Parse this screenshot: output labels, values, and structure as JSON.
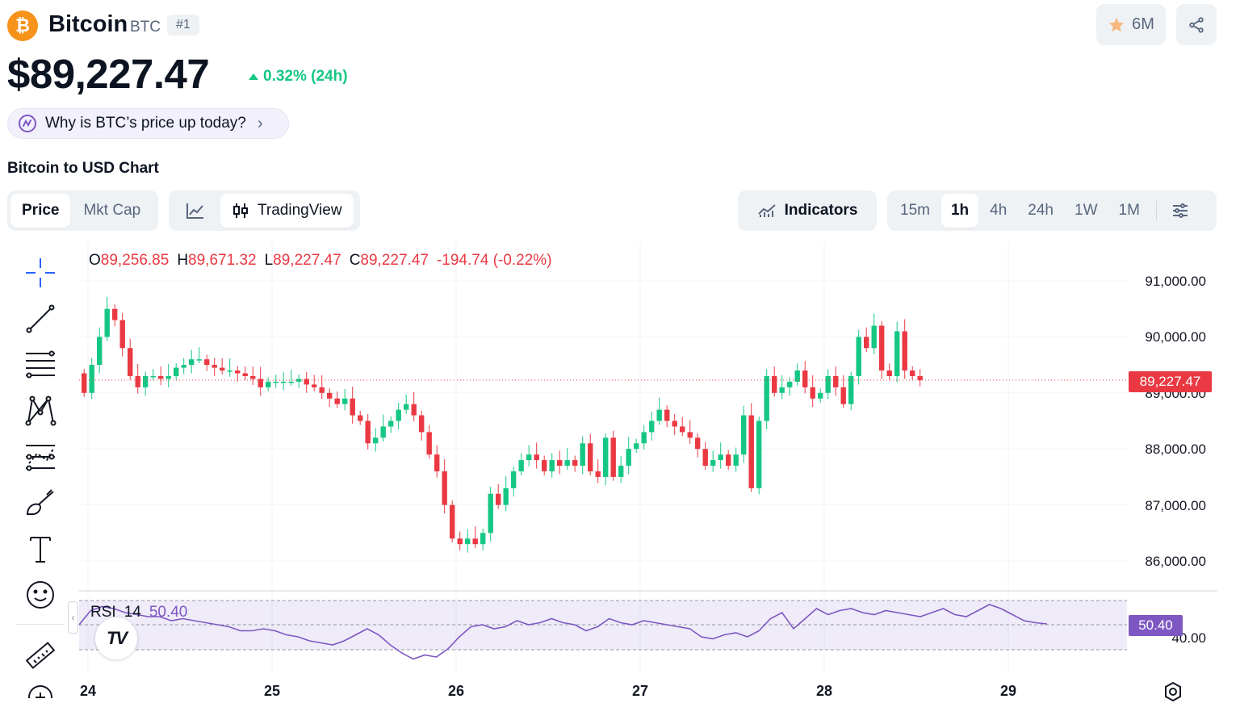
{
  "header": {
    "coin_symbol_glyph": "₿",
    "name": "Bitcoin",
    "ticker": "BTC",
    "rank": "#1",
    "price": "$89,227.47",
    "change_24h": "0.32% (24h)",
    "why_prompt": "Why is BTC’s price up today?",
    "watchlist_count": "6M",
    "colors": {
      "brand": "#f7931a",
      "up": "#16c784",
      "down": "#ea3943",
      "rsi": "#7e57c2"
    }
  },
  "chart_title": "Bitcoin to USD Chart",
  "toolbar": {
    "price_tab": "Price",
    "mktcap_tab": "Mkt Cap",
    "tradingview_label": "TradingView",
    "indicators_label": "Indicators",
    "timeframes": [
      "15m",
      "1h",
      "4h",
      "24h",
      "1W",
      "1M"
    ],
    "active_timeframe": "1h"
  },
  "ohlc": {
    "o_label": "O",
    "o": "89,256.85",
    "h_label": "H",
    "h": "89,671.32",
    "l_label": "L",
    "l": "89,227.47",
    "c_label": "C",
    "c": "89,227.47",
    "change": "-194.74 (-0.22%)"
  },
  "rsi": {
    "label": "RSI",
    "period": "14",
    "value": "50.40",
    "axis_label": "40.00"
  },
  "tv_logo_text": "TV",
  "price_tag": "89,227.47",
  "chart_data": {
    "type": "candlestick",
    "title": "Bitcoin to USD Chart",
    "y_ticks": [
      "91,000.00",
      "90,000.00",
      "89,000.00",
      "88,000.00",
      "87,000.00",
      "86,000.00"
    ],
    "y_tick_values": [
      91000,
      90000,
      89000,
      88000,
      87000,
      86000
    ],
    "x_ticks": [
      "24",
      "25",
      "26",
      "27",
      "28",
      "29"
    ],
    "ylim": [
      85450,
      91700
    ],
    "current_price": 89227.47,
    "closes": [
      89000,
      89500,
      90000,
      90500,
      90300,
      89800,
      89300,
      89100,
      89300,
      89300,
      89250,
      89300,
      89450,
      89500,
      89600,
      89600,
      89500,
      89450,
      89400,
      89400,
      89350,
      89300,
      89250,
      89100,
      89200,
      89200,
      89200,
      89200,
      89250,
      89150,
      89100,
      89000,
      88900,
      88800,
      88900,
      88600,
      88500,
      88100,
      88200,
      88400,
      88500,
      88700,
      88800,
      88600,
      88300,
      87900,
      87600,
      87000,
      86400,
      86300,
      86400,
      86300,
      86500,
      87200,
      87000,
      87300,
      87600,
      87800,
      87900,
      87800,
      87600,
      87800,
      87700,
      87800,
      87700,
      88100,
      87600,
      87500,
      88200,
      87500,
      87700,
      88000,
      88100,
      88300,
      88500,
      88700,
      88500,
      88400,
      88300,
      88200,
      88000,
      87700,
      87800,
      87900,
      87700,
      87900,
      88600,
      87300,
      88500,
      89300,
      89000,
      89100,
      89200,
      89400,
      89100,
      88900,
      89000,
      89300,
      89100,
      88800,
      89300,
      90000,
      89800,
      90200,
      89400,
      89300,
      90100,
      89400,
      89300,
      89227.47
    ],
    "rsi_series": [
      50,
      57,
      59,
      58,
      56,
      55,
      54,
      54,
      52,
      53,
      52,
      51,
      50,
      49,
      47,
      47,
      48,
      47,
      45,
      44,
      42,
      41,
      40,
      42,
      45,
      48,
      45,
      40,
      36,
      33,
      35,
      34,
      38,
      44,
      49,
      50,
      48,
      49,
      52,
      50,
      51,
      53,
      51,
      50,
      47,
      49,
      53,
      51,
      50,
      52,
      51,
      50,
      49,
      48,
      44,
      43,
      45,
      46,
      44,
      47,
      53,
      56,
      48,
      53,
      58,
      55,
      57,
      58,
      56,
      55,
      57,
      56,
      55,
      54,
      56,
      58,
      55,
      54,
      57,
      60,
      58,
      55,
      52,
      51,
      50.4
    ],
    "rsi_ylim": [
      30,
      70
    ]
  }
}
